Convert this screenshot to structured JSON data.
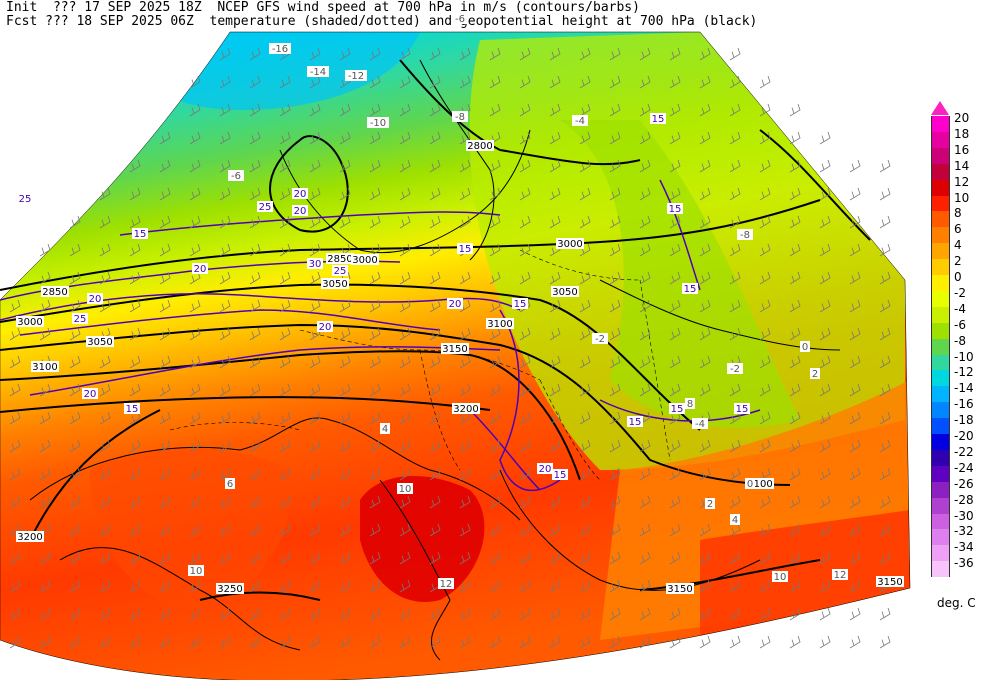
{
  "header": {
    "init_line": "Init  ??? 17 SEP 2025 18Z  NCEP GFS wind speed at 700 hPa in m/s (contours/barbs)",
    "fcst_line": "Fcst ??? 18 SEP 2025 06Z  temperature (shaded/dotted) and geopotential height at 700 hPa (black)"
  },
  "colorbar": {
    "units": "deg. C",
    "levels": [
      {
        "label": "20",
        "color": "#ff00cc"
      },
      {
        "label": "18",
        "color": "#e6009f"
      },
      {
        "label": "16",
        "color": "#cc0077"
      },
      {
        "label": "14",
        "color": "#c4003c"
      },
      {
        "label": "12",
        "color": "#dc0000"
      },
      {
        "label": "10",
        "color": "#ff2000"
      },
      {
        "label": "8",
        "color": "#ff5a00"
      },
      {
        "label": "6",
        "color": "#ff8000"
      },
      {
        "label": "4",
        "color": "#ffa500"
      },
      {
        "label": "2",
        "color": "#ffcc00"
      },
      {
        "label": "0",
        "color": "#ffee00"
      },
      {
        "label": "-2",
        "color": "#e8ff00"
      },
      {
        "label": "-4",
        "color": "#c8f000"
      },
      {
        "label": "-6",
        "color": "#9ee000"
      },
      {
        "label": "-8",
        "color": "#5fd64e"
      },
      {
        "label": "-10",
        "color": "#30d8a0"
      },
      {
        "label": "-12",
        "color": "#00d8e0"
      },
      {
        "label": "-14",
        "color": "#00b4ff"
      },
      {
        "label": "-16",
        "color": "#0086ff"
      },
      {
        "label": "-18",
        "color": "#0050ff"
      },
      {
        "label": "-20",
        "color": "#0000e0"
      },
      {
        "label": "-22",
        "color": "#3000b0"
      },
      {
        "label": "-24",
        "color": "#6000c0"
      },
      {
        "label": "-26",
        "color": "#8c20c0"
      },
      {
        "label": "-28",
        "color": "#b040d0"
      },
      {
        "label": "-30",
        "color": "#cc60e0"
      },
      {
        "label": "-32",
        "color": "#dd80ee"
      },
      {
        "label": "-34",
        "color": "#eea0f6"
      },
      {
        "label": "-36",
        "color": "#f6c4fb"
      }
    ]
  },
  "map": {
    "height_labels": [
      {
        "text": "2850"
      },
      {
        "text": "3000"
      },
      {
        "text": "3050"
      },
      {
        "text": "3100"
      },
      {
        "text": "3150"
      },
      {
        "text": "3200"
      },
      {
        "text": "3250"
      },
      {
        "text": "3000"
      },
      {
        "text": "3050"
      },
      {
        "text": "3100"
      },
      {
        "text": "3150"
      },
      {
        "text": "3200"
      },
      {
        "text": "3100"
      },
      {
        "text": "3150"
      },
      {
        "text": "3250"
      },
      {
        "text": "2800"
      },
      {
        "text": "2850"
      },
      {
        "text": "3000"
      },
      {
        "text": "3050"
      },
      {
        "text": "3100"
      },
      {
        "text": "3150"
      }
    ],
    "wind_labels": [
      {
        "text": "15"
      },
      {
        "text": "20"
      },
      {
        "text": "25"
      },
      {
        "text": "20"
      },
      {
        "text": "25"
      },
      {
        "text": "30"
      },
      {
        "text": "25"
      },
      {
        "text": "20"
      },
      {
        "text": "15"
      },
      {
        "text": "20"
      },
      {
        "text": "15"
      },
      {
        "text": "20"
      },
      {
        "text": "15"
      },
      {
        "text": "15"
      },
      {
        "text": "15"
      },
      {
        "text": "15"
      },
      {
        "text": "15"
      },
      {
        "text": "15"
      },
      {
        "text": "15"
      },
      {
        "text": "20"
      },
      {
        "text": "15"
      },
      {
        "text": "20"
      },
      {
        "text": "25"
      },
      {
        "text": "20"
      }
    ],
    "temp_labels": [
      {
        "text": "-16"
      },
      {
        "text": "-14"
      },
      {
        "text": "-12"
      },
      {
        "text": "-10"
      },
      {
        "text": "-8"
      },
      {
        "text": "-6"
      },
      {
        "text": "-4"
      },
      {
        "text": "-2"
      },
      {
        "text": "0"
      },
      {
        "text": "2"
      },
      {
        "text": "4"
      },
      {
        "text": "6"
      },
      {
        "text": "8"
      },
      {
        "text": "10"
      },
      {
        "text": "12"
      },
      {
        "text": "10"
      },
      {
        "text": "10"
      },
      {
        "text": "12"
      },
      {
        "text": "-8"
      },
      {
        "text": "-4"
      },
      {
        "text": "-2"
      },
      {
        "text": "0"
      },
      {
        "text": "2"
      },
      {
        "text": "4"
      },
      {
        "text": "-6"
      }
    ]
  }
}
